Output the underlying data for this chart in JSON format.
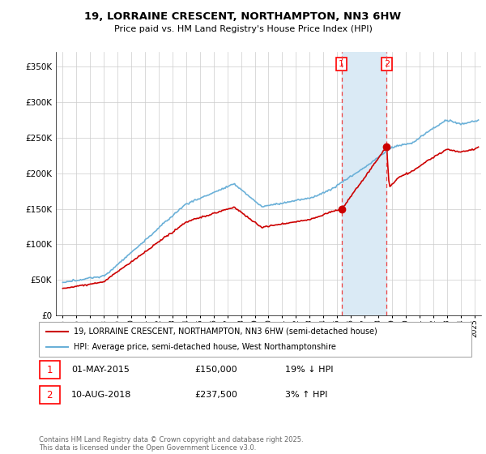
{
  "title1": "19, LORRAINE CRESCENT, NORTHAMPTON, NN3 6HW",
  "title2": "Price paid vs. HM Land Registry's House Price Index (HPI)",
  "legend1": "19, LORRAINE CRESCENT, NORTHAMPTON, NN3 6HW (semi-detached house)",
  "legend2": "HPI: Average price, semi-detached house, West Northamptonshire",
  "footer": "Contains HM Land Registry data © Crown copyright and database right 2025.\nThis data is licensed under the Open Government Licence v3.0.",
  "sale1_label": "1",
  "sale1_date": "01-MAY-2015",
  "sale1_price": "£150,000",
  "sale1_hpi": "19% ↓ HPI",
  "sale2_label": "2",
  "sale2_date": "10-AUG-2018",
  "sale2_price": "£237,500",
  "sale2_hpi": "3% ↑ HPI",
  "hpi_color": "#6ab0d8",
  "price_color": "#cc0000",
  "highlight_color": "#daeaf5",
  "marker1_x": 2015.33,
  "marker2_x": 2018.61,
  "marker1_y": 150000,
  "marker2_y": 237500,
  "vline1_x": 2015.33,
  "vline2_x": 2018.61,
  "ylim_min": 0,
  "ylim_max": 370000,
  "xlim_min": 1994.5,
  "xlim_max": 2025.5,
  "yticks": [
    0,
    50000,
    100000,
    150000,
    200000,
    250000,
    300000,
    350000
  ],
  "xticks": [
    1995,
    1996,
    1997,
    1998,
    1999,
    2000,
    2001,
    2002,
    2003,
    2004,
    2005,
    2006,
    2007,
    2008,
    2009,
    2010,
    2011,
    2012,
    2013,
    2014,
    2015,
    2016,
    2017,
    2018,
    2019,
    2020,
    2021,
    2022,
    2023,
    2024,
    2025
  ]
}
